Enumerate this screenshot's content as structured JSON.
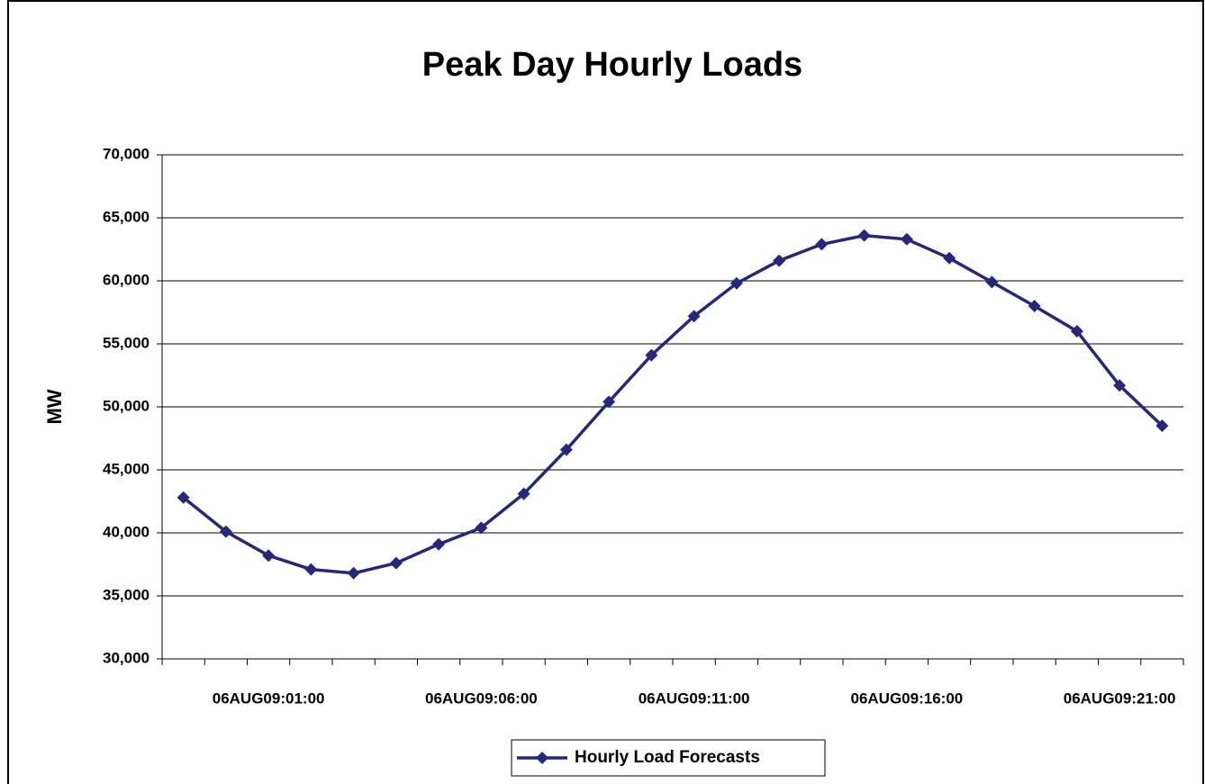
{
  "chart_data": {
    "type": "line",
    "title": "Peak Day Hourly Loads",
    "y_label": "MW",
    "categories": [
      null,
      null,
      "06AUG09:01:00",
      null,
      null,
      null,
      null,
      "06AUG09:06:00",
      null,
      null,
      null,
      null,
      "06AUG09:11:00",
      null,
      null,
      null,
      null,
      "06AUG09:16:00",
      null,
      null,
      null,
      null,
      "06AUG09:21:00",
      null
    ],
    "series": [
      {
        "name": "Hourly Load Forecasts",
        "color": "#25287a",
        "values": [
          42800,
          40100,
          38200,
          37100,
          36800,
          37600,
          39100,
          40400,
          43100,
          46600,
          50400,
          54100,
          57200,
          59800,
          61600,
          62900,
          63600,
          63300,
          61800,
          59900,
          58000,
          56000,
          51700,
          48500
        ]
      }
    ],
    "ylim": [
      30000,
      70000
    ],
    "yticks": [
      {
        "value": 30000,
        "label": "30,000"
      },
      {
        "value": 35000,
        "label": "35,000"
      },
      {
        "value": 40000,
        "label": "40,000"
      },
      {
        "value": 45000,
        "label": "45,000"
      },
      {
        "value": 50000,
        "label": "50,000"
      },
      {
        "value": 55000,
        "label": "55,000"
      },
      {
        "value": 60000,
        "label": "60,000"
      },
      {
        "value": 65000,
        "label": "65,000"
      },
      {
        "value": 70000,
        "label": "70,000"
      }
    ],
    "grid": true,
    "legend": "bottom"
  }
}
